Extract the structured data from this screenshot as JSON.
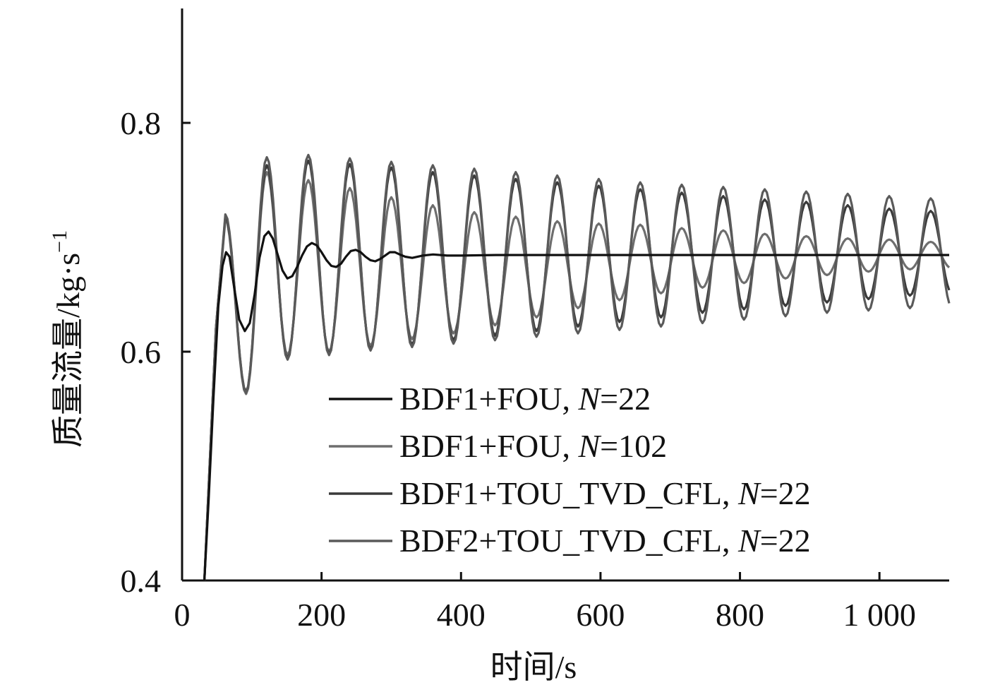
{
  "chart_data": {
    "type": "line",
    "xlabel": "时间/s",
    "ylabel": "质量流量/kg·s",
    "ylabel_superscript": "−1",
    "xlim": [
      0,
      1100
    ],
    "ylim": [
      0.4,
      0.9
    ],
    "x_ticks": [
      0,
      200,
      400,
      600,
      800,
      1000
    ],
    "x_tick_labels": [
      "0",
      "200",
      "400",
      "600",
      "800",
      "1 000"
    ],
    "y_ticks": [
      0.4,
      0.6,
      0.8
    ],
    "y_tick_labels": [
      "0.4",
      "0.6",
      "0.8"
    ],
    "grid": false,
    "legend_position": "bottom-right",
    "series": [
      {
        "name": "BDF1+FOU, N=22",
        "legend_prefix": "BDF1+FOU, ",
        "legend_italic": "N",
        "legend_suffix": "=22",
        "color": "#111111",
        "points": [
          [
            32,
            0.4
          ],
          [
            38,
            0.47
          ],
          [
            45,
            0.56
          ],
          [
            52,
            0.64
          ],
          [
            58,
            0.675
          ],
          [
            63,
            0.687
          ],
          [
            68,
            0.683
          ],
          [
            75,
            0.655
          ],
          [
            82,
            0.628
          ],
          [
            90,
            0.618
          ],
          [
            97,
            0.625
          ],
          [
            104,
            0.65
          ],
          [
            111,
            0.682
          ],
          [
            118,
            0.701
          ],
          [
            124,
            0.705
          ],
          [
            130,
            0.699
          ],
          [
            137,
            0.685
          ],
          [
            144,
            0.671
          ],
          [
            151,
            0.664
          ],
          [
            158,
            0.666
          ],
          [
            165,
            0.674
          ],
          [
            172,
            0.684
          ],
          [
            179,
            0.692
          ],
          [
            186,
            0.695
          ],
          [
            193,
            0.693
          ],
          [
            200,
            0.687
          ],
          [
            207,
            0.68
          ],
          [
            214,
            0.675
          ],
          [
            221,
            0.674
          ],
          [
            228,
            0.677
          ],
          [
            235,
            0.683
          ],
          [
            242,
            0.688
          ],
          [
            249,
            0.689
          ],
          [
            256,
            0.687
          ],
          [
            263,
            0.683
          ],
          [
            270,
            0.68
          ],
          [
            277,
            0.679
          ],
          [
            284,
            0.681
          ],
          [
            291,
            0.684
          ],
          [
            298,
            0.687
          ],
          [
            305,
            0.687
          ],
          [
            312,
            0.685
          ],
          [
            320,
            0.683
          ],
          [
            330,
            0.682
          ],
          [
            345,
            0.684
          ],
          [
            360,
            0.685
          ],
          [
            380,
            0.684
          ],
          [
            400,
            0.684
          ],
          [
            450,
            0.6845
          ],
          [
            500,
            0.6845
          ],
          [
            600,
            0.6845
          ],
          [
            700,
            0.6845
          ],
          [
            800,
            0.6845
          ],
          [
            900,
            0.6845
          ],
          [
            1000,
            0.6845
          ],
          [
            1100,
            0.6845
          ]
        ]
      },
      {
        "name": "BDF1+FOU, N=102",
        "legend_prefix": "BDF1+FOU, ",
        "legend_italic": "N",
        "legend_suffix": "=102",
        "color": "#6e6e6e",
        "model": {
          "start": 32,
          "period": 59.5,
          "peak1_x": 62,
          "amp_peaks": [
            0.716,
            0.757,
            0.75,
            0.743,
            0.735,
            0.728,
            0.722,
            0.718,
            0.714,
            0.712,
            0.711,
            0.708,
            0.706,
            0.703,
            0.701,
            0.699,
            0.698,
            0.696,
            0.695
          ],
          "amp_troughs": [
            0.563,
            0.597,
            0.6,
            0.605,
            0.611,
            0.616,
            0.623,
            0.63,
            0.638,
            0.645,
            0.651,
            0.656,
            0.66,
            0.664,
            0.667,
            0.67,
            0.672,
            0.673,
            0.675
          ],
          "end": 1100
        }
      },
      {
        "name": "BDF1+TOU_TVD_CFL, N=22",
        "legend_prefix": "BDF1+TOU_TVD_CFL, ",
        "legend_italic": "N",
        "legend_suffix": "=22",
        "color": "#3a3a3a",
        "model": {
          "start": 32,
          "period": 59.5,
          "peak1_x": 62,
          "amp_peaks": [
            0.718,
            0.763,
            0.767,
            0.764,
            0.761,
            0.757,
            0.754,
            0.751,
            0.748,
            0.745,
            0.742,
            0.739,
            0.736,
            0.733,
            0.731,
            0.728,
            0.725,
            0.723,
            0.72
          ],
          "amp_troughs": [
            0.565,
            0.594,
            0.598,
            0.602,
            0.606,
            0.61,
            0.614,
            0.618,
            0.622,
            0.626,
            0.63,
            0.634,
            0.637,
            0.64,
            0.643,
            0.646,
            0.649,
            0.652,
            0.655
          ],
          "end": 1100
        }
      },
      {
        "name": "BDF2+TOU_TVD_CFL, N=22",
        "legend_prefix": "BDF2+TOU_TVD_CFL, ",
        "legend_italic": "N",
        "legend_suffix": "=22",
        "color": "#5a5a5a",
        "model": {
          "start": 32,
          "period": 59.5,
          "peak1_x": 62,
          "amp_peaks": [
            0.72,
            0.77,
            0.772,
            0.769,
            0.766,
            0.763,
            0.76,
            0.757,
            0.754,
            0.751,
            0.748,
            0.746,
            0.744,
            0.742,
            0.74,
            0.738,
            0.736,
            0.734,
            0.732
          ],
          "amp_troughs": [
            0.564,
            0.593,
            0.597,
            0.601,
            0.604,
            0.607,
            0.61,
            0.613,
            0.616,
            0.619,
            0.622,
            0.625,
            0.628,
            0.631,
            0.634,
            0.636,
            0.638,
            0.64,
            0.643
          ],
          "end": 1100
        }
      }
    ]
  }
}
